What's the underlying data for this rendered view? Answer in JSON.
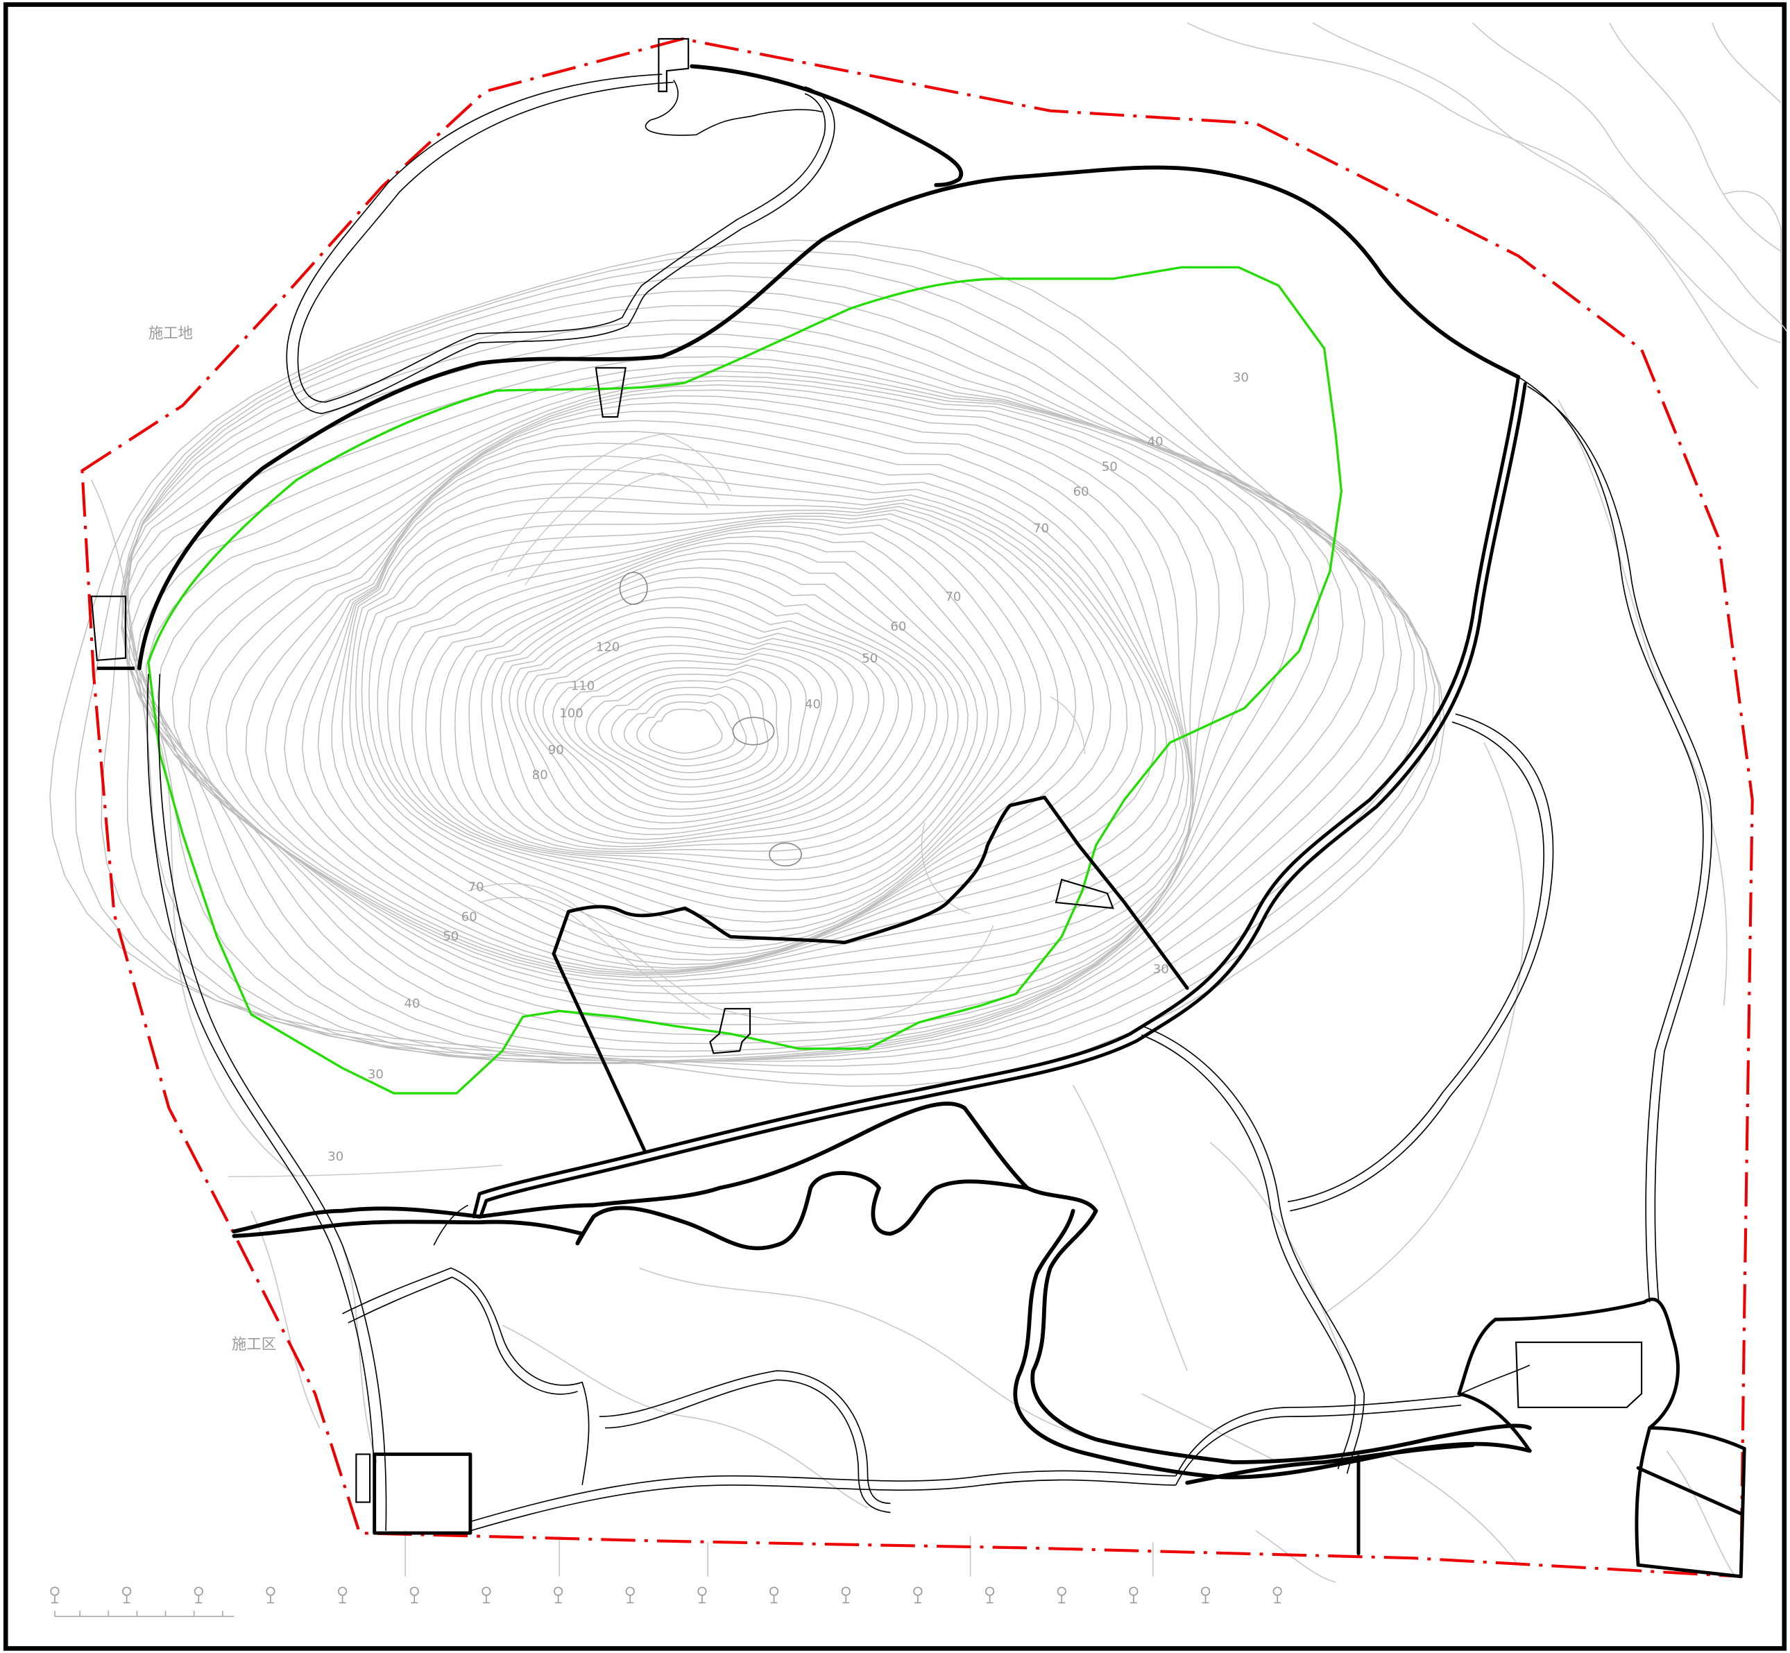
{
  "map": {
    "labels": {
      "construction_site": "施工地",
      "construction_zone": "施工区"
    },
    "contour_labels": [
      "30",
      "30",
      "40",
      "50",
      "60",
      "70",
      "80",
      "90",
      "100",
      "110",
      "120",
      "30",
      "40",
      "50",
      "60",
      "70",
      "70",
      "60",
      "50",
      "40",
      "30"
    ]
  },
  "colors": {
    "background": "#ffffff",
    "frame": "#000000",
    "boundary": "#ee0000",
    "green_line": "#22dd00",
    "road": "#000000",
    "contour": "#bdbdbd"
  },
  "legend_icons": [
    "tree-icon",
    "tree-icon",
    "tree-icon",
    "tree-icon",
    "tree-icon",
    "tree-icon",
    "tree-icon",
    "tree-icon",
    "tree-icon",
    "tree-icon",
    "tree-icon",
    "tree-icon",
    "tree-icon",
    "tree-icon",
    "tree-icon",
    "tree-icon",
    "tree-icon",
    "tree-icon"
  ]
}
